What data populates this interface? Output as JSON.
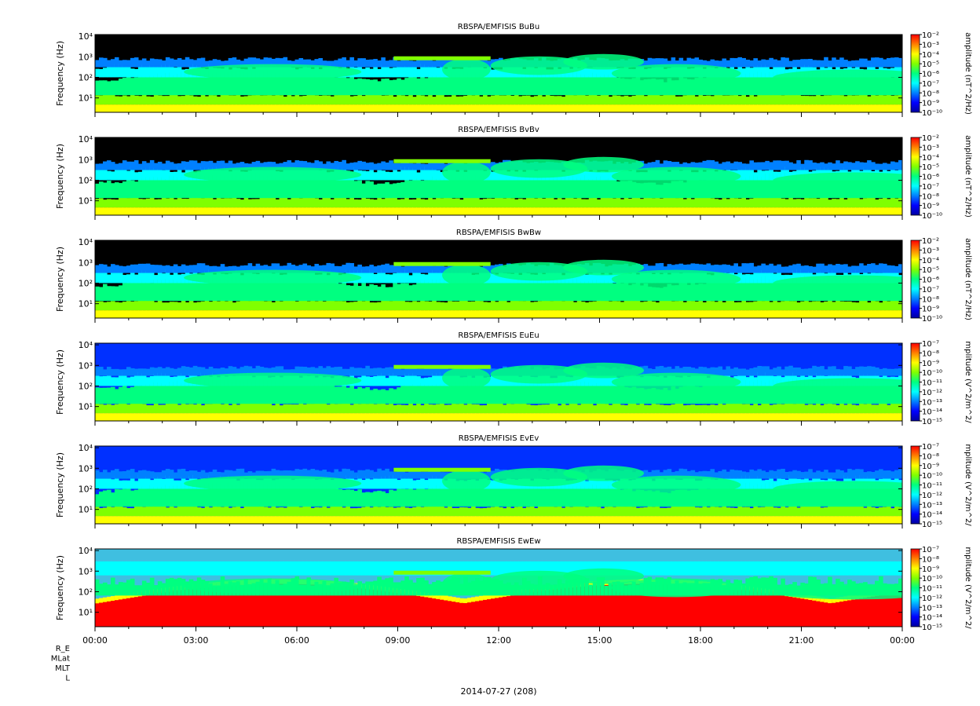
{
  "figure": {
    "date_label": "2014-07-27 (208)",
    "ephemeris_labels": [
      "R_E",
      "MLat",
      "MLT",
      "L"
    ]
  },
  "colors": {
    "colormap": [
      "#0000a0",
      "#0000ff",
      "#0080ff",
      "#00ffff",
      "#00ff80",
      "#80ff00",
      "#ffff00",
      "#ff8000",
      "#ff0000"
    ],
    "background_low": "#000000"
  },
  "chart_data": [
    {
      "type": "heatmap",
      "title": "RBSPA/EMFISIS  BuBu",
      "ylabel": "Frequency (Hz)",
      "yscale": "log",
      "ylim": [
        2,
        12000
      ],
      "yticks": [
        10,
        100,
        1000,
        10000
      ],
      "yticklabels": [
        "10¹",
        "10²",
        "10³",
        "10⁴"
      ],
      "xticklabels": [],
      "colorbar": {
        "label": "amplitude (nT^2/Hz)",
        "scale": "log",
        "range": [
          1e-10,
          0.01
        ],
        "ticklabels": [
          "10⁻²",
          "10⁻³",
          "10⁻⁴",
          "10⁻⁵",
          "10⁻⁶",
          "10⁻⁷",
          "10⁻⁸",
          "10⁻⁹",
          "10⁻¹⁰"
        ]
      }
    },
    {
      "type": "heatmap",
      "title": "RBSPA/EMFISIS  BvBv",
      "ylabel": "Frequency (Hz)",
      "yscale": "log",
      "ylim": [
        2,
        12000
      ],
      "yticks": [
        10,
        100,
        1000,
        10000
      ],
      "yticklabels": [
        "10¹",
        "10²",
        "10³",
        "10⁴"
      ],
      "xticklabels": [],
      "colorbar": {
        "label": "amplitude (nT^2/Hz)",
        "scale": "log",
        "range": [
          1e-10,
          0.01
        ],
        "ticklabels": [
          "10⁻²",
          "10⁻³",
          "10⁻⁴",
          "10⁻⁵",
          "10⁻⁶",
          "10⁻⁷",
          "10⁻⁸",
          "10⁻⁹",
          "10⁻¹⁰"
        ]
      }
    },
    {
      "type": "heatmap",
      "title": "RBSPA/EMFISIS  BwBw",
      "ylabel": "Frequency (Hz)",
      "yscale": "log",
      "ylim": [
        2,
        12000
      ],
      "yticks": [
        10,
        100,
        1000,
        10000
      ],
      "yticklabels": [
        "10¹",
        "10²",
        "10³",
        "10⁴"
      ],
      "xticklabels": [],
      "colorbar": {
        "label": "amplitude (nT^2/Hz)",
        "scale": "log",
        "range": [
          1e-10,
          0.01
        ],
        "ticklabels": [
          "10⁻²",
          "10⁻³",
          "10⁻⁴",
          "10⁻⁵",
          "10⁻⁶",
          "10⁻⁷",
          "10⁻⁸",
          "10⁻⁹",
          "10⁻¹⁰"
        ]
      }
    },
    {
      "type": "heatmap",
      "title": "RBSPA/EMFISIS  EuEu",
      "ylabel": "Frequency (Hz)",
      "yscale": "log",
      "ylim": [
        2,
        12000
      ],
      "yticks": [
        10,
        100,
        1000,
        10000
      ],
      "yticklabels": [
        "10¹",
        "10²",
        "10³",
        "10⁴"
      ],
      "xticklabels": [],
      "colorbar": {
        "label": "mplitude (V^2/m^2/",
        "scale": "log",
        "range": [
          1e-15,
          1e-07
        ],
        "ticklabels": [
          "10⁻⁷",
          "10⁻⁸",
          "10⁻⁹",
          "10⁻¹⁰",
          "10⁻¹¹",
          "10⁻¹²",
          "10⁻¹³",
          "10⁻¹⁴",
          "10⁻¹⁵"
        ]
      }
    },
    {
      "type": "heatmap",
      "title": "RBSPA/EMFISIS  EvEv",
      "ylabel": "Frequency (Hz)",
      "yscale": "log",
      "ylim": [
        2,
        12000
      ],
      "yticks": [
        10,
        100,
        1000,
        10000
      ],
      "yticklabels": [
        "10¹",
        "10²",
        "10³",
        "10⁴"
      ],
      "xticklabels": [],
      "colorbar": {
        "label": "mplitude (V^2/m^2/",
        "scale": "log",
        "range": [
          1e-15,
          1e-07
        ],
        "ticklabels": [
          "10⁻⁷",
          "10⁻⁸",
          "10⁻⁹",
          "10⁻¹⁰",
          "10⁻¹¹",
          "10⁻¹²",
          "10⁻¹³",
          "10⁻¹⁴",
          "10⁻¹⁵"
        ]
      }
    },
    {
      "type": "heatmap",
      "title": "RBSPA/EMFISIS  EwEw",
      "ylabel": "Frequency (Hz)",
      "yscale": "log",
      "ylim": [
        2,
        12000
      ],
      "yticks": [
        10,
        100,
        1000,
        10000
      ],
      "yticklabels": [
        "10¹",
        "10²",
        "10³",
        "10⁴"
      ],
      "xticklabels": [
        "00:00",
        "03:00",
        "06:00",
        "09:00",
        "12:00",
        "15:00",
        "18:00",
        "21:00",
        "00:00"
      ],
      "colorbar": {
        "label": "mplitude (V^2/m^2/",
        "scale": "log",
        "range": [
          1e-15,
          1e-07
        ],
        "ticklabels": [
          "10⁻⁷",
          "10⁻⁸",
          "10⁻⁹",
          "10⁻¹⁰",
          "10⁻¹¹",
          "10⁻¹²",
          "10⁻¹³",
          "10⁻¹⁴",
          "10⁻¹⁵"
        ]
      }
    }
  ]
}
